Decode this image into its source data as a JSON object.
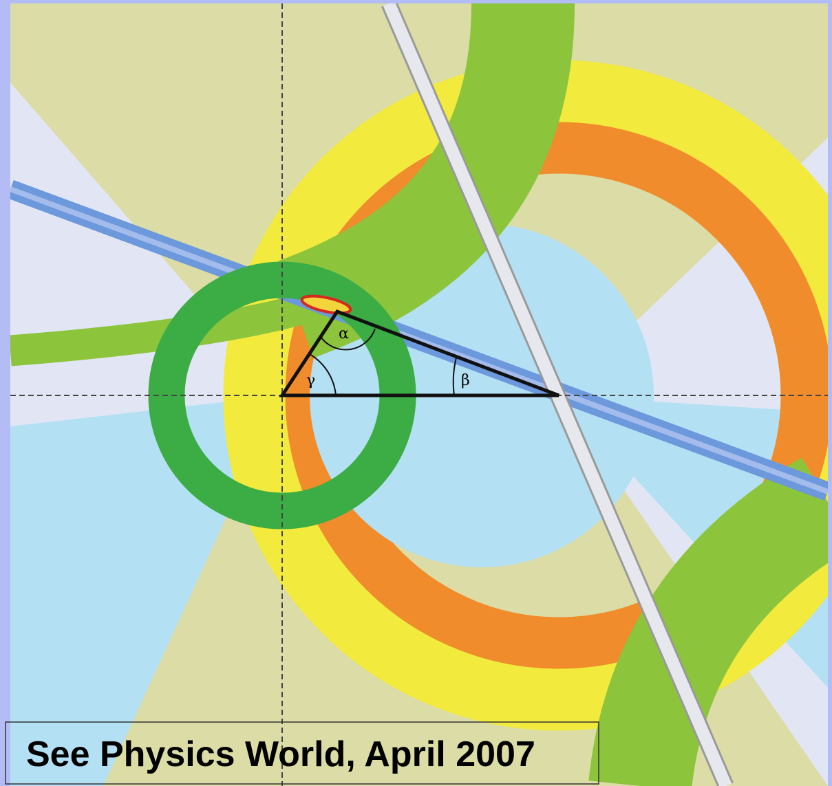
{
  "angles": {
    "alpha": "α",
    "beta": "β",
    "gamma": "γ"
  },
  "caption": "See Physics World, April 2007"
}
